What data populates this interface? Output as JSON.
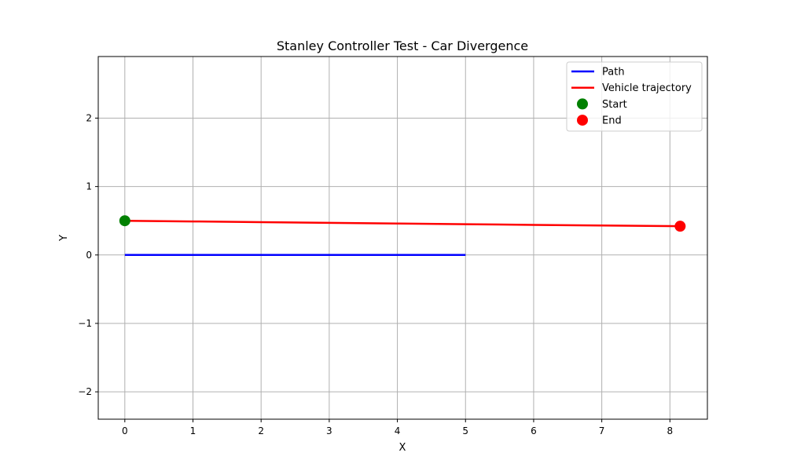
{
  "chart_data": {
    "type": "line",
    "title": "Stanley Controller Test - Car Divergence",
    "xlabel": "X",
    "ylabel": "Y",
    "xlim": [
      -0.39,
      8.55
    ],
    "ylim": [
      -2.4,
      2.9
    ],
    "xticks": [
      0,
      1,
      2,
      3,
      4,
      5,
      6,
      7,
      8
    ],
    "yticks": [
      -2,
      -1,
      0,
      1,
      2
    ],
    "xtick_labels": [
      "0",
      "1",
      "2",
      "3",
      "4",
      "5",
      "6",
      "7",
      "8"
    ],
    "ytick_labels": [
      "−2",
      "−1",
      "0",
      "1",
      "2"
    ],
    "grid": true,
    "legend_position": "top-right",
    "series": [
      {
        "name": "Path",
        "kind": "line",
        "color": "#0000ff",
        "x": [
          0,
          5
        ],
        "y": [
          0,
          0
        ]
      },
      {
        "name": "Vehicle trajectory",
        "kind": "line",
        "color": "#ff0000",
        "x": [
          0,
          1,
          2,
          3,
          4,
          5,
          6,
          7,
          8.15
        ],
        "y": [
          0.5,
          0.49,
          0.48,
          0.47,
          0.46,
          0.45,
          0.44,
          0.43,
          0.42
        ]
      },
      {
        "name": "Start",
        "kind": "scatter",
        "color": "#008000",
        "x": [
          0
        ],
        "y": [
          0.5
        ]
      },
      {
        "name": "End",
        "kind": "scatter",
        "color": "#ff0000",
        "x": [
          8.15
        ],
        "y": [
          0.42
        ]
      }
    ]
  }
}
